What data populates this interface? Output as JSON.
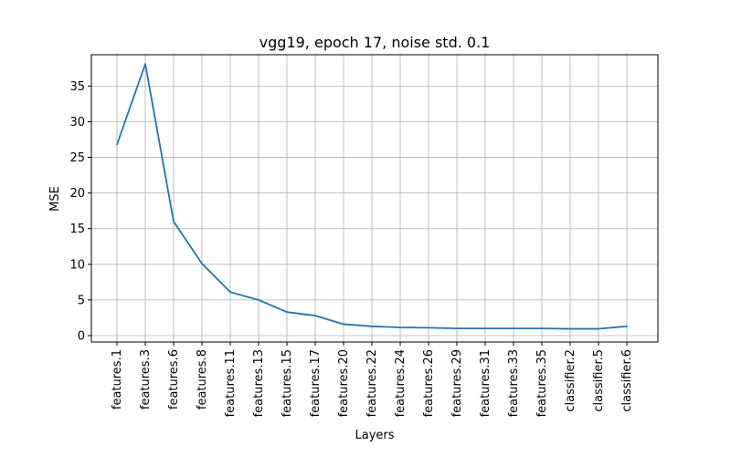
{
  "chart_data": {
    "type": "line",
    "title": "vgg19, epoch 17, noise std. 0.1",
    "xlabel": "Layers",
    "ylabel": "MSE",
    "categories": [
      "features.1",
      "features.3",
      "features.6",
      "features.8",
      "features.11",
      "features.13",
      "features.15",
      "features.17",
      "features.20",
      "features.22",
      "features.24",
      "features.26",
      "features.29",
      "features.31",
      "features.33",
      "features.35",
      "classifier.2",
      "classifier.5",
      "classifier.6"
    ],
    "series": [
      {
        "values": [
          26.8,
          38.1,
          16.0,
          10.1,
          6.1,
          5.0,
          3.3,
          2.8,
          1.6,
          1.3,
          1.15,
          1.1,
          1.0,
          1.0,
          1.0,
          1.0,
          0.95,
          0.95,
          1.3
        ],
        "color": "#1f77b4"
      }
    ],
    "ylim": [
      -0.9,
      39.4
    ],
    "yticks": [
      0,
      5,
      10,
      15,
      20,
      25,
      30,
      35
    ],
    "grid": true
  }
}
